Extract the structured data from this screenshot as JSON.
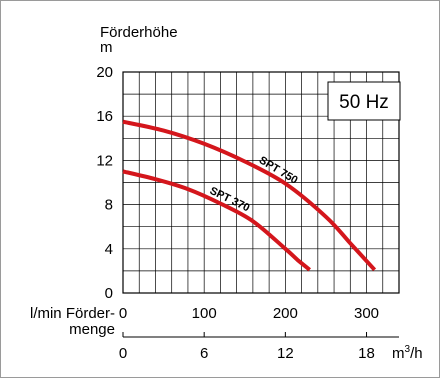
{
  "chart_data": {
    "type": "line",
    "ylabel_line1": "Förderhöhe",
    "ylabel_line2": "m",
    "flow_label_line1": "l/min Förder-",
    "flow_label_line2": "menge",
    "x2_unit": "m",
    "x2_unit_sup": "3",
    "x2_unit_tail": "/h",
    "annotation": "50 Hz",
    "ylim": [
      0,
      20
    ],
    "yticks": [
      "0",
      "4",
      "8",
      "12",
      "16",
      "20"
    ],
    "xlim": [
      0,
      340
    ],
    "xticks": [
      "0",
      "100",
      "200",
      "300"
    ],
    "x2_lim": [
      0,
      20.4
    ],
    "x2_ticks": [
      "0",
      "6",
      "12",
      "18"
    ],
    "grid": true,
    "series_color": "#d4161c",
    "series": [
      {
        "name": "SPT 750",
        "x": [
          0,
          50,
          100,
          150,
          200,
          250,
          280,
          310
        ],
        "y": [
          15.5,
          14.7,
          13.5,
          11.9,
          9.9,
          6.9,
          4.5,
          2.1
        ]
      },
      {
        "name": "SPT 370",
        "x": [
          0,
          40,
          80,
          120,
          160,
          200,
          215,
          230
        ],
        "y": [
          11.0,
          10.3,
          9.4,
          8.1,
          6.5,
          4.0,
          3.0,
          2.1
        ]
      }
    ]
  }
}
